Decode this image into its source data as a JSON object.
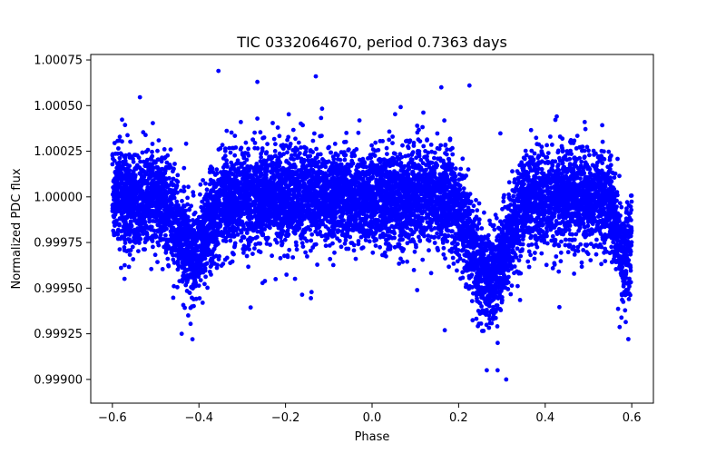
{
  "chart_data": {
    "type": "scatter",
    "title": "TIC 0332064670, period 0.7363 days",
    "xlabel": "Phase",
    "ylabel": "Normalized PDC flux",
    "xlim": [
      -0.65,
      0.65
    ],
    "ylim": [
      0.99887,
      1.00078
    ],
    "x_ticks": [
      -0.6,
      -0.4,
      -0.2,
      0.0,
      0.2,
      0.4,
      0.6
    ],
    "x_tick_labels": [
      "−0.6",
      "−0.4",
      "−0.2",
      "0.0",
      "0.2",
      "0.4",
      "0.6"
    ],
    "y_ticks": [
      0.999,
      0.99925,
      0.9995,
      0.99975,
      1.0,
      1.00025,
      1.0005,
      1.00075
    ],
    "y_tick_labels": [
      "0.99900",
      "0.99925",
      "0.99950",
      "0.99975",
      "1.00000",
      "1.00025",
      "1.00050",
      "1.00075"
    ],
    "marker_color": "#0000ff",
    "grid": false,
    "series": [
      {
        "name": "PDC flux",
        "point_count": 9000,
        "phase_range": [
          -0.6,
          0.6
        ],
        "baseline_flux": 1.0,
        "scatter_sigma": 0.00013,
        "dips": [
          {
            "center_phase": -0.415,
            "width": 0.03,
            "depth": 0.00032
          },
          {
            "center_phase": 0.27,
            "width": 0.04,
            "depth": 0.00045
          },
          {
            "center_phase": 0.585,
            "width": 0.02,
            "depth": 0.0003
          }
        ],
        "outlier_points": [
          {
            "x": -0.355,
            "y": 1.00069
          },
          {
            "x": -0.13,
            "y": 1.00066
          },
          {
            "x": -0.265,
            "y": 1.00063
          },
          {
            "x": 0.225,
            "y": 1.00061
          },
          {
            "x": 0.16,
            "y": 1.0006
          },
          {
            "x": 0.31,
            "y": 0.999
          },
          {
            "x": 0.265,
            "y": 0.99905
          },
          {
            "x": 0.29,
            "y": 0.99905
          },
          {
            "x": -0.415,
            "y": 0.99922
          },
          {
            "x": -0.44,
            "y": 0.99925
          }
        ]
      }
    ]
  }
}
